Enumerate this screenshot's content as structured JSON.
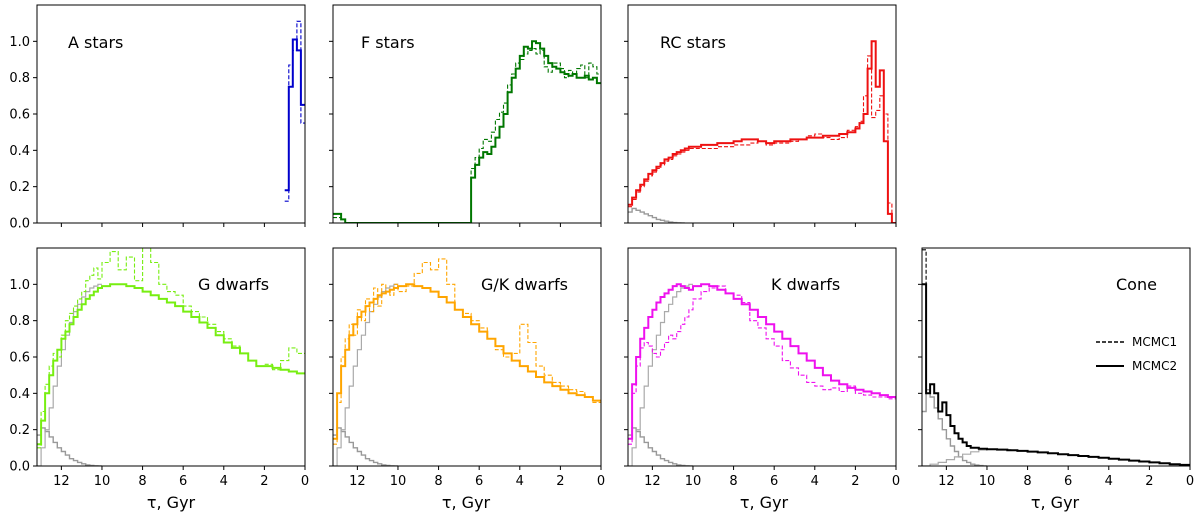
{
  "figure": {
    "xlabel": "τ,  Gyr",
    "legend": {
      "dashed_label": "MCMC1",
      "solid_label": "MCMC2",
      "position": "middle-right of Cone panel"
    }
  },
  "chart_data": [
    {
      "id": "a_stars",
      "type": "line",
      "step": "post",
      "title": "A stars",
      "color": "#0000cc",
      "xlim": [
        13.2,
        0
      ],
      "ylim": [
        0,
        1.2
      ],
      "x_reversed": true,
      "yticks": [
        0.0,
        0.2,
        0.4,
        0.6,
        0.8,
        1.0
      ],
      "xticks": [
        12,
        10,
        8,
        6,
        4,
        2,
        0
      ],
      "edges": [
        1.0,
        0.8,
        0.6,
        0.4,
        0.2,
        0.0
      ],
      "solid": [
        0.18,
        0.75,
        1.01,
        0.95,
        0.65
      ],
      "dashed": [
        0.12,
        0.87,
        0.95,
        1.11,
        0.55
      ],
      "gray": null,
      "gray_thin": null
    },
    {
      "id": "f_stars",
      "type": "line",
      "step": "post",
      "title": "F stars",
      "color": "#007700",
      "xlim": [
        13.2,
        0
      ],
      "ylim": [
        0,
        1.2
      ],
      "x_reversed": true,
      "yticks": [
        0.0,
        0.2,
        0.4,
        0.6,
        0.8,
        1.0
      ],
      "xticks": [
        12,
        10,
        8,
        6,
        4,
        2,
        0
      ],
      "edges": [
        13.2,
        12.8,
        12.6,
        6.8,
        6.4,
        6.2,
        6.0,
        5.8,
        5.6,
        5.4,
        5.2,
        5.0,
        4.8,
        4.6,
        4.4,
        4.2,
        4.0,
        3.8,
        3.6,
        3.4,
        3.2,
        3.0,
        2.8,
        2.6,
        2.4,
        2.2,
        2.0,
        1.8,
        1.6,
        1.4,
        1.2,
        1.0,
        0.8,
        0.6,
        0.4,
        0.2,
        0.0
      ],
      "solid": [
        0.05,
        0.02,
        0.0,
        0.0,
        0.25,
        0.32,
        0.36,
        0.39,
        0.38,
        0.42,
        0.47,
        0.53,
        0.6,
        0.72,
        0.8,
        0.85,
        0.92,
        0.97,
        0.96,
        1.0,
        0.99,
        0.96,
        0.92,
        0.88,
        0.86,
        0.85,
        0.83,
        0.82,
        0.81,
        0.82,
        0.8,
        0.8,
        0.81,
        0.79,
        0.8,
        0.77
      ],
      "dashed": [
        0.03,
        0.02,
        0.0,
        0.0,
        0.3,
        0.36,
        0.41,
        0.46,
        0.45,
        0.5,
        0.57,
        0.61,
        0.66,
        0.76,
        0.82,
        0.88,
        0.9,
        0.93,
        0.95,
        0.96,
        0.93,
        0.95,
        0.86,
        0.83,
        0.88,
        0.88,
        0.85,
        0.8,
        0.84,
        0.82,
        0.85,
        0.87,
        0.8,
        0.88,
        0.86,
        0.82
      ],
      "gray": null,
      "gray_thin": null
    },
    {
      "id": "rc_stars",
      "type": "line",
      "step": "post",
      "title": "RC stars",
      "color": "#ee1111",
      "xlim": [
        13.2,
        0
      ],
      "ylim": [
        0,
        1.2
      ],
      "x_reversed": true,
      "yticks": [
        0.0,
        0.2,
        0.4,
        0.6,
        0.8,
        1.0
      ],
      "xticks": [
        12,
        10,
        8,
        6,
        4,
        2,
        0
      ],
      "edges": [
        13.2,
        13.0,
        12.8,
        12.6,
        12.4,
        12.2,
        12.0,
        11.8,
        11.6,
        11.4,
        11.2,
        11.0,
        10.8,
        10.6,
        10.4,
        10.2,
        10.0,
        9.6,
        9.2,
        8.8,
        8.4,
        8.0,
        7.6,
        7.2,
        6.8,
        6.4,
        6.0,
        5.6,
        5.2,
        4.8,
        4.4,
        4.0,
        3.6,
        3.2,
        2.8,
        2.4,
        2.0,
        1.8,
        1.6,
        1.4,
        1.2,
        1.0,
        0.8,
        0.6,
        0.4,
        0.2,
        0.0
      ],
      "solid": [
        0.1,
        0.14,
        0.18,
        0.21,
        0.24,
        0.27,
        0.29,
        0.31,
        0.33,
        0.35,
        0.36,
        0.38,
        0.39,
        0.4,
        0.41,
        0.42,
        0.42,
        0.43,
        0.43,
        0.44,
        0.44,
        0.45,
        0.46,
        0.46,
        0.45,
        0.44,
        0.45,
        0.45,
        0.46,
        0.46,
        0.47,
        0.47,
        0.48,
        0.48,
        0.49,
        0.5,
        0.52,
        0.55,
        0.6,
        0.85,
        1.0,
        0.75,
        0.84,
        0.45,
        0.05,
        0.0
      ],
      "dashed": [
        0.09,
        0.13,
        0.17,
        0.2,
        0.23,
        0.26,
        0.28,
        0.3,
        0.32,
        0.34,
        0.35,
        0.37,
        0.38,
        0.39,
        0.4,
        0.41,
        0.41,
        0.41,
        0.41,
        0.42,
        0.42,
        0.43,
        0.43,
        0.44,
        0.45,
        0.43,
        0.44,
        0.44,
        0.45,
        0.46,
        0.48,
        0.49,
        0.47,
        0.46,
        0.47,
        0.51,
        0.53,
        0.56,
        0.7,
        0.92,
        0.58,
        0.62,
        0.7,
        0.6,
        0.11,
        0.0
      ],
      "gray": {
        "edges": [
          13.2,
          13.0,
          12.8,
          12.6,
          12.4,
          12.2,
          12.0,
          11.8,
          11.6,
          11.4,
          11.2,
          11.0,
          10.8,
          10.6,
          10.4
        ],
        "values": [
          0.06,
          0.08,
          0.07,
          0.06,
          0.05,
          0.04,
          0.03,
          0.02,
          0.015,
          0.01,
          0.005,
          0.002,
          0.001,
          0.0
        ]
      },
      "gray_thin": null
    },
    {
      "id": "g_dwarfs",
      "type": "line",
      "step": "post",
      "title": "G dwarfs",
      "color": "#77ee11",
      "xlim": [
        13.2,
        0
      ],
      "ylim": [
        0,
        1.2
      ],
      "x_reversed": true,
      "yticks": [
        0.0,
        0.2,
        0.4,
        0.6,
        0.8,
        1.0
      ],
      "xticks": [
        12,
        10,
        8,
        6,
        4,
        2,
        0
      ],
      "edges": [
        13.2,
        13.0,
        12.8,
        12.6,
        12.4,
        12.2,
        12.0,
        11.8,
        11.6,
        11.4,
        11.2,
        11.0,
        10.8,
        10.6,
        10.4,
        10.2,
        10.0,
        9.6,
        9.2,
        8.8,
        8.4,
        8.0,
        7.6,
        7.2,
        6.8,
        6.4,
        6.0,
        5.6,
        5.2,
        4.8,
        4.4,
        4.0,
        3.6,
        3.2,
        2.8,
        2.4,
        2.0,
        1.6,
        1.2,
        0.8,
        0.4,
        0.0
      ],
      "solid": [
        0.12,
        0.25,
        0.4,
        0.5,
        0.58,
        0.64,
        0.7,
        0.74,
        0.78,
        0.82,
        0.86,
        0.89,
        0.92,
        0.94,
        0.96,
        0.98,
        0.99,
        1.0,
        1.0,
        0.99,
        0.98,
        0.96,
        0.94,
        0.92,
        0.9,
        0.88,
        0.85,
        0.82,
        0.79,
        0.76,
        0.72,
        0.68,
        0.65,
        0.62,
        0.58,
        0.55,
        0.55,
        0.54,
        0.53,
        0.52,
        0.51
      ],
      "dashed": [
        0.1,
        0.3,
        0.45,
        0.55,
        0.62,
        0.6,
        0.72,
        0.8,
        0.84,
        0.88,
        0.92,
        0.96,
        1.02,
        1.05,
        1.09,
        1.03,
        1.12,
        1.18,
        1.08,
        1.15,
        1.02,
        1.2,
        1.12,
        1.0,
        0.96,
        0.94,
        0.88,
        0.85,
        0.82,
        0.78,
        0.74,
        0.7,
        0.66,
        0.62,
        0.58,
        0.55,
        0.56,
        0.53,
        0.58,
        0.65,
        0.62
      ],
      "gray": {
        "edges": [
          13.2,
          13.0,
          12.8,
          12.6,
          12.4,
          12.2,
          12.0,
          11.8,
          11.6,
          11.4,
          11.2,
          11.0,
          10.8,
          10.6,
          10.4,
          10.2,
          10.0
        ],
        "values": [
          0.17,
          0.21,
          0.19,
          0.16,
          0.13,
          0.1,
          0.08,
          0.06,
          0.04,
          0.03,
          0.02,
          0.012,
          0.006,
          0.003,
          0.001,
          0.0
        ]
      },
      "gray_thin": {
        "edges": [
          13.2,
          13.0,
          12.8,
          12.6,
          12.4,
          12.2,
          12.0,
          11.8,
          11.6,
          11.4,
          11.2,
          11.0,
          10.8,
          10.6,
          10.4,
          10.2,
          10.0
        ],
        "values": [
          0.0,
          0.1,
          0.2,
          0.32,
          0.44,
          0.55,
          0.64,
          0.72,
          0.79,
          0.85,
          0.89,
          0.93,
          0.96,
          0.98,
          0.99,
          1.0
        ]
      }
    },
    {
      "id": "gk_dwarfs",
      "type": "line",
      "step": "post",
      "title": "G/K dwarfs",
      "color": "#ffa500",
      "xlim": [
        13.2,
        0
      ],
      "ylim": [
        0,
        1.2
      ],
      "x_reversed": true,
      "yticks": [
        0.0,
        0.2,
        0.4,
        0.6,
        0.8,
        1.0
      ],
      "xticks": [
        12,
        10,
        8,
        6,
        4,
        2,
        0
      ],
      "edges": [
        13.2,
        13.0,
        12.8,
        12.6,
        12.4,
        12.2,
        12.0,
        11.8,
        11.6,
        11.4,
        11.2,
        11.0,
        10.8,
        10.6,
        10.4,
        10.2,
        10.0,
        9.6,
        9.2,
        8.8,
        8.4,
        8.0,
        7.6,
        7.2,
        6.8,
        6.4,
        6.0,
        5.6,
        5.2,
        4.8,
        4.4,
        4.0,
        3.6,
        3.2,
        2.8,
        2.4,
        2.0,
        1.6,
        1.2,
        0.8,
        0.4,
        0.0
      ],
      "solid": [
        0.15,
        0.4,
        0.55,
        0.64,
        0.72,
        0.78,
        0.82,
        0.85,
        0.88,
        0.9,
        0.92,
        0.94,
        0.95,
        0.96,
        0.97,
        0.98,
        0.99,
        1.0,
        0.99,
        0.98,
        0.96,
        0.93,
        0.9,
        0.86,
        0.82,
        0.78,
        0.74,
        0.7,
        0.66,
        0.62,
        0.58,
        0.55,
        0.52,
        0.49,
        0.46,
        0.44,
        0.42,
        0.4,
        0.39,
        0.38,
        0.36
      ],
      "dashed": [
        0.12,
        0.35,
        0.6,
        0.7,
        0.78,
        0.72,
        0.86,
        0.8,
        0.92,
        0.85,
        0.98,
        0.88,
        1.0,
        0.96,
        0.94,
        1.0,
        0.96,
        0.99,
        1.06,
        1.12,
        1.08,
        1.14,
        1.0,
        0.86,
        0.84,
        0.8,
        0.76,
        0.7,
        0.64,
        0.6,
        0.62,
        0.78,
        0.68,
        0.55,
        0.5,
        0.46,
        0.44,
        0.42,
        0.41,
        0.38,
        0.35
      ],
      "gray": {
        "edges": [
          13.2,
          13.0,
          12.8,
          12.6,
          12.4,
          12.2,
          12.0,
          11.8,
          11.6,
          11.4,
          11.2,
          11.0,
          10.8,
          10.6,
          10.4,
          10.2,
          10.0
        ],
        "values": [
          0.17,
          0.21,
          0.19,
          0.16,
          0.13,
          0.1,
          0.08,
          0.06,
          0.04,
          0.03,
          0.02,
          0.012,
          0.006,
          0.003,
          0.001,
          0.0
        ]
      },
      "gray_thin": {
        "edges": [
          13.2,
          13.0,
          12.8,
          12.6,
          12.4,
          12.2,
          12.0,
          11.8,
          11.6,
          11.4,
          11.2,
          11.0,
          10.8,
          10.6,
          10.4,
          10.2,
          10.0
        ],
        "values": [
          0.0,
          0.1,
          0.2,
          0.32,
          0.44,
          0.55,
          0.64,
          0.72,
          0.79,
          0.85,
          0.89,
          0.93,
          0.96,
          0.98,
          0.99,
          1.0
        ]
      }
    },
    {
      "id": "k_dwarfs",
      "type": "line",
      "step": "post",
      "title": "K dwarfs",
      "color": "#ee11ee",
      "xlim": [
        13.2,
        0
      ],
      "ylim": [
        0,
        1.2
      ],
      "x_reversed": true,
      "yticks": [
        0.0,
        0.2,
        0.4,
        0.6,
        0.8,
        1.0
      ],
      "xticks": [
        12,
        10,
        8,
        6,
        4,
        2,
        0
      ],
      "edges": [
        13.2,
        13.0,
        12.8,
        12.6,
        12.4,
        12.2,
        12.0,
        11.8,
        11.6,
        11.4,
        11.2,
        11.0,
        10.8,
        10.6,
        10.4,
        10.2,
        10.0,
        9.6,
        9.2,
        8.8,
        8.4,
        8.0,
        7.6,
        7.2,
        6.8,
        6.4,
        6.0,
        5.6,
        5.2,
        4.8,
        4.4,
        4.0,
        3.6,
        3.2,
        2.8,
        2.4,
        2.0,
        1.6,
        1.2,
        0.8,
        0.4,
        0.0
      ],
      "solid": [
        0.15,
        0.45,
        0.6,
        0.7,
        0.76,
        0.82,
        0.86,
        0.9,
        0.93,
        0.95,
        0.97,
        0.99,
        1.0,
        0.99,
        0.98,
        0.97,
        0.99,
        1.0,
        0.99,
        0.97,
        0.95,
        0.92,
        0.89,
        0.86,
        0.82,
        0.78,
        0.74,
        0.7,
        0.66,
        0.62,
        0.58,
        0.54,
        0.5,
        0.47,
        0.45,
        0.43,
        0.42,
        0.41,
        0.4,
        0.39,
        0.38
      ],
      "dashed": [
        0.12,
        0.4,
        0.55,
        0.65,
        0.68,
        0.66,
        0.62,
        0.6,
        0.64,
        0.68,
        0.72,
        0.7,
        0.74,
        0.78,
        0.82,
        0.86,
        0.92,
        0.96,
        0.98,
        0.99,
        0.95,
        0.94,
        0.9,
        0.8,
        0.76,
        0.7,
        0.66,
        0.58,
        0.54,
        0.5,
        0.46,
        0.44,
        0.42,
        0.43,
        0.41,
        0.44,
        0.4,
        0.39,
        0.38,
        0.38,
        0.37
      ],
      "gray": {
        "edges": [
          13.2,
          13.0,
          12.8,
          12.6,
          12.4,
          12.2,
          12.0,
          11.8,
          11.6,
          11.4,
          11.2,
          11.0,
          10.8,
          10.6,
          10.4,
          10.2,
          10.0
        ],
        "values": [
          0.17,
          0.21,
          0.19,
          0.16,
          0.13,
          0.1,
          0.08,
          0.06,
          0.04,
          0.03,
          0.02,
          0.012,
          0.006,
          0.003,
          0.001,
          0.0
        ]
      },
      "gray_thin": {
        "edges": [
          13.2,
          13.0,
          12.8,
          12.6,
          12.4,
          12.2,
          12.0,
          11.8,
          11.6,
          11.4,
          11.2,
          11.0,
          10.8,
          10.6,
          10.4,
          10.2,
          10.0
        ],
        "values": [
          0.0,
          0.1,
          0.2,
          0.32,
          0.44,
          0.55,
          0.64,
          0.72,
          0.79,
          0.85,
          0.89,
          0.93,
          0.96,
          0.98,
          0.99,
          1.0
        ]
      }
    },
    {
      "id": "cone",
      "type": "line",
      "step": "post",
      "title": "Cone",
      "color": "#000000",
      "xlim": [
        13.2,
        0
      ],
      "ylim": [
        0,
        1.2
      ],
      "x_reversed": true,
      "yticks": [
        0.0,
        0.2,
        0.4,
        0.6,
        0.8,
        1.0
      ],
      "xticks": [
        12,
        10,
        8,
        6,
        4,
        2,
        0
      ],
      "edges": [
        13.2,
        13.0,
        12.8,
        12.6,
        12.4,
        12.2,
        12.0,
        11.8,
        11.6,
        11.4,
        11.2,
        11.0,
        10.8,
        10.6,
        10.4,
        10.0,
        9.5,
        9.0,
        8.5,
        8.0,
        7.5,
        7.0,
        6.5,
        6.0,
        5.5,
        5.0,
        4.5,
        4.0,
        3.5,
        3.0,
        2.5,
        2.0,
        1.5,
        1.0,
        0.5,
        0.0
      ],
      "solid": [
        1.0,
        0.4,
        0.45,
        0.4,
        0.3,
        0.35,
        0.28,
        0.22,
        0.18,
        0.15,
        0.13,
        0.11,
        0.1,
        0.1,
        0.095,
        0.092,
        0.09,
        0.087,
        0.083,
        0.079,
        0.075,
        0.07,
        0.065,
        0.06,
        0.055,
        0.05,
        0.045,
        0.04,
        0.035,
        0.03,
        0.025,
        0.02,
        0.015,
        0.01,
        0.006
      ],
      "dashed": [
        1.19,
        0.4,
        0.45,
        0.4,
        0.3,
        0.35,
        0.28,
        0.22,
        0.18,
        0.15,
        0.13,
        0.11,
        0.1,
        0.1,
        0.095,
        0.092,
        0.09,
        0.087,
        0.083,
        0.079,
        0.075,
        0.07,
        0.065,
        0.06,
        0.055,
        0.05,
        0.045,
        0.04,
        0.035,
        0.03,
        0.025,
        0.02,
        0.015,
        0.01,
        0.006
      ],
      "gray": {
        "edges": [
          13.2,
          13.0,
          12.8,
          12.6,
          12.4,
          12.2,
          12.0,
          11.8,
          11.6,
          11.4,
          11.2,
          11.0,
          10.8,
          10.6,
          10.4,
          10.2,
          10.0
        ],
        "values": [
          0.3,
          0.42,
          0.38,
          0.32,
          0.26,
          0.2,
          0.15,
          0.11,
          0.08,
          0.05,
          0.03,
          0.02,
          0.01,
          0.005,
          0.002,
          0.0
        ]
      },
      "gray_thin": {
        "edges": [
          13.2,
          12.8,
          12.4,
          12.0,
          11.6,
          11.2,
          10.8,
          10.4,
          10.0,
          9.6,
          9.2,
          8.8
        ],
        "values": [
          0.0,
          0.01,
          0.02,
          0.035,
          0.05,
          0.065,
          0.078,
          0.088,
          0.093,
          0.092,
          0.09
        ]
      }
    }
  ]
}
